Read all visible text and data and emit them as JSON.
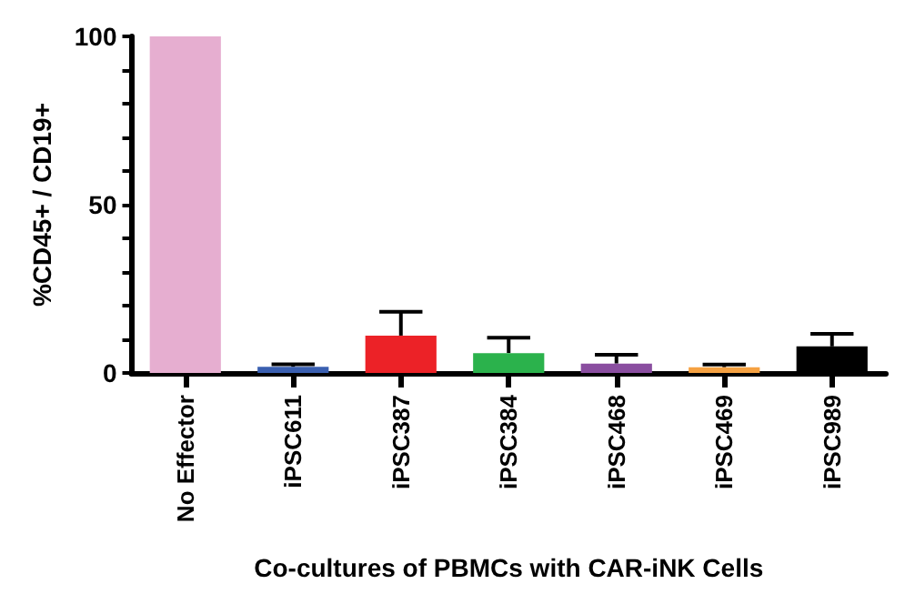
{
  "chart_data": {
    "type": "bar",
    "ylabel": "%CD45+ / CD19+",
    "xlabel": "Co-cultures of PBMCs with CAR-iNK Cells",
    "categories": [
      "No Effector",
      "iPSC611",
      "iPSC387",
      "iPSC384",
      "iPSC468",
      "iPSC469",
      "iPSC989"
    ],
    "values": [
      100,
      1.8,
      11.1,
      5.9,
      2.8,
      1.7,
      7.9
    ],
    "colors": [
      "#e6aed0",
      "#3a5fb0",
      "#ec2227",
      "#2bb24c",
      "#8a4ea0",
      "#f5a142",
      "#000000"
    ],
    "errors": [
      null,
      [
        1.8,
        2.6
      ],
      [
        11.1,
        18.2
      ],
      [
        5.9,
        10.5
      ],
      [
        2.8,
        5.4
      ],
      [
        1.7,
        2.5
      ],
      [
        7.9,
        11.6
      ]
    ],
    "ylim": [
      0,
      100
    ],
    "yticks": [
      0,
      {
        "value": 10,
        "label": null
      },
      {
        "value": 20,
        "label": null
      },
      {
        "value": 30,
        "label": null
      },
      {
        "value": 40,
        "label": null
      },
      50,
      {
        "value": 60,
        "label": null
      },
      {
        "value": 70,
        "label": null
      },
      {
        "value": 80,
        "label": null
      },
      {
        "value": 90,
        "label": null
      },
      100
    ],
    "grid": false
  }
}
